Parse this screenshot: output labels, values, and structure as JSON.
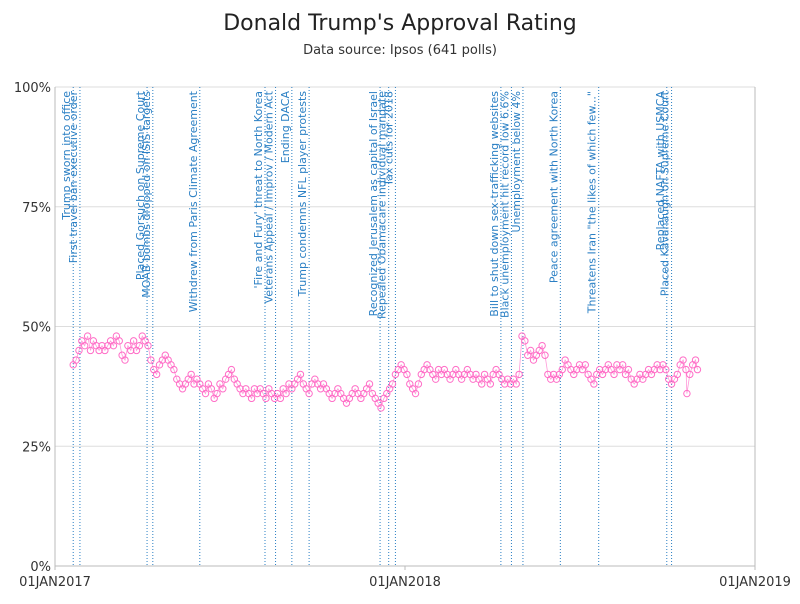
{
  "chart_data": {
    "type": "scatter",
    "title": "Donald Trump's Approval Rating",
    "subtitle": "Data source: Ipsos (641 polls)",
    "xlabel": "",
    "ylabel": "",
    "x_range": [
      "2017-01-01",
      "2019-01-01"
    ],
    "ylim": [
      0,
      100
    ],
    "y_ticks": [
      0,
      25,
      50,
      75,
      100
    ],
    "y_tick_labels": [
      "0%",
      "25%",
      "50%",
      "75%",
      "100%"
    ],
    "x_ticks": [
      "2017-01-01",
      "2018-01-01",
      "2019-01-01"
    ],
    "x_tick_labels": [
      "01JAN2017",
      "01JAN2018",
      "01JAN2019"
    ],
    "grid": true,
    "colors": {
      "points": "#ff6ec7",
      "events": "#2a7fc4",
      "grid": "#dddddd",
      "axis": "#bbbbbb"
    },
    "events": [
      {
        "date": "2017-01-20",
        "label": "Trump sworn into office"
      },
      {
        "date": "2017-01-27",
        "label": "First travel ban executive order"
      },
      {
        "date": "2017-04-07",
        "label": "Placed Gorsuch on Supreme Court"
      },
      {
        "date": "2017-04-13",
        "label": "MOAB bombs dropped on ISIS targets"
      },
      {
        "date": "2017-06-01",
        "label": "Withdrew from Paris Climate Agreement"
      },
      {
        "date": "2017-08-08",
        "label": "'Fire and Fury' threat to North Korea"
      },
      {
        "date": "2017-08-19",
        "label": "Veterans Appeal / Improv / Modern Act"
      },
      {
        "date": "2017-09-05",
        "label": "Ending DACA"
      },
      {
        "date": "2017-09-23",
        "label": "Trump condemns NFL player protests"
      },
      {
        "date": "2017-12-06",
        "label": "Recognized Jerusalem as capital of Israel"
      },
      {
        "date": "2017-12-15",
        "label": "Repealed Obamacare individual mandate"
      },
      {
        "date": "2017-12-22",
        "label": "Tax cuts for 2018"
      },
      {
        "date": "2018-04-11",
        "label": "Bill to shut down sex-trafficking websites"
      },
      {
        "date": "2018-04-22",
        "label": "Black unemployment hit record low 6.6%"
      },
      {
        "date": "2018-05-04",
        "label": "Unemployment below 4%"
      },
      {
        "date": "2018-06-12",
        "label": "Peace agreement with North Korea"
      },
      {
        "date": "2018-07-22",
        "label": "Threatens Iran \"the likes of which few...\""
      },
      {
        "date": "2018-10-01",
        "label": "Replaced NAFTA with USMCA"
      },
      {
        "date": "2018-10-06",
        "label": "Placed Kavanaugh on Supreme Court"
      }
    ],
    "series": [
      {
        "values": [
          {
            "x": "2017-01-20",
            "y": 42
          },
          {
            "x": "2017-01-23",
            "y": 43
          },
          {
            "x": "2017-01-26",
            "y": 45
          },
          {
            "x": "2017-01-29",
            "y": 47
          },
          {
            "x": "2017-02-01",
            "y": 46
          },
          {
            "x": "2017-02-04",
            "y": 48
          },
          {
            "x": "2017-02-07",
            "y": 45
          },
          {
            "x": "2017-02-10",
            "y": 47
          },
          {
            "x": "2017-02-13",
            "y": 46
          },
          {
            "x": "2017-02-16",
            "y": 45
          },
          {
            "x": "2017-02-19",
            "y": 46
          },
          {
            "x": "2017-02-22",
            "y": 45
          },
          {
            "x": "2017-02-25",
            "y": 46
          },
          {
            "x": "2017-02-28",
            "y": 47
          },
          {
            "x": "2017-03-03",
            "y": 46
          },
          {
            "x": "2017-03-06",
            "y": 48
          },
          {
            "x": "2017-03-09",
            "y": 47
          },
          {
            "x": "2017-03-12",
            "y": 44
          },
          {
            "x": "2017-03-15",
            "y": 43
          },
          {
            "x": "2017-03-18",
            "y": 46
          },
          {
            "x": "2017-03-21",
            "y": 45
          },
          {
            "x": "2017-03-24",
            "y": 47
          },
          {
            "x": "2017-03-27",
            "y": 45
          },
          {
            "x": "2017-03-30",
            "y": 46
          },
          {
            "x": "2017-04-02",
            "y": 48
          },
          {
            "x": "2017-04-05",
            "y": 47
          },
          {
            "x": "2017-04-08",
            "y": 46
          },
          {
            "x": "2017-04-11",
            "y": 43
          },
          {
            "x": "2017-04-14",
            "y": 41
          },
          {
            "x": "2017-04-17",
            "y": 40
          },
          {
            "x": "2017-04-20",
            "y": 42
          },
          {
            "x": "2017-04-23",
            "y": 43
          },
          {
            "x": "2017-04-26",
            "y": 44
          },
          {
            "x": "2017-04-29",
            "y": 43
          },
          {
            "x": "2017-05-02",
            "y": 42
          },
          {
            "x": "2017-05-05",
            "y": 41
          },
          {
            "x": "2017-05-08",
            "y": 39
          },
          {
            "x": "2017-05-11",
            "y": 38
          },
          {
            "x": "2017-05-14",
            "y": 37
          },
          {
            "x": "2017-05-17",
            "y": 38
          },
          {
            "x": "2017-05-20",
            "y": 39
          },
          {
            "x": "2017-05-23",
            "y": 40
          },
          {
            "x": "2017-05-26",
            "y": 38
          },
          {
            "x": "2017-05-29",
            "y": 39
          },
          {
            "x": "2017-06-01",
            "y": 38
          },
          {
            "x": "2017-06-04",
            "y": 37
          },
          {
            "x": "2017-06-07",
            "y": 36
          },
          {
            "x": "2017-06-10",
            "y": 38
          },
          {
            "x": "2017-06-13",
            "y": 37
          },
          {
            "x": "2017-06-16",
            "y": 35
          },
          {
            "x": "2017-06-19",
            "y": 36
          },
          {
            "x": "2017-06-22",
            "y": 38
          },
          {
            "x": "2017-06-25",
            "y": 37
          },
          {
            "x": "2017-06-28",
            "y": 39
          },
          {
            "x": "2017-07-01",
            "y": 40
          },
          {
            "x": "2017-07-04",
            "y": 41
          },
          {
            "x": "2017-07-07",
            "y": 39
          },
          {
            "x": "2017-07-10",
            "y": 38
          },
          {
            "x": "2017-07-13",
            "y": 37
          },
          {
            "x": "2017-07-16",
            "y": 36
          },
          {
            "x": "2017-07-19",
            "y": 37
          },
          {
            "x": "2017-07-22",
            "y": 36
          },
          {
            "x": "2017-07-25",
            "y": 35
          },
          {
            "x": "2017-07-28",
            "y": 37
          },
          {
            "x": "2017-07-31",
            "y": 36
          },
          {
            "x": "2017-08-03",
            "y": 37
          },
          {
            "x": "2017-08-06",
            "y": 36
          },
          {
            "x": "2017-08-09",
            "y": 35
          },
          {
            "x": "2017-08-12",
            "y": 37
          },
          {
            "x": "2017-08-15",
            "y": 36
          },
          {
            "x": "2017-08-18",
            "y": 35
          },
          {
            "x": "2017-08-21",
            "y": 36
          },
          {
            "x": "2017-08-24",
            "y": 35
          },
          {
            "x": "2017-08-27",
            "y": 37
          },
          {
            "x": "2017-08-30",
            "y": 36
          },
          {
            "x": "2017-09-02",
            "y": 38
          },
          {
            "x": "2017-09-05",
            "y": 37
          },
          {
            "x": "2017-09-08",
            "y": 38
          },
          {
            "x": "2017-09-11",
            "y": 39
          },
          {
            "x": "2017-09-14",
            "y": 40
          },
          {
            "x": "2017-09-17",
            "y": 38
          },
          {
            "x": "2017-09-20",
            "y": 37
          },
          {
            "x": "2017-09-23",
            "y": 36
          },
          {
            "x": "2017-09-26",
            "y": 38
          },
          {
            "x": "2017-09-29",
            "y": 39
          },
          {
            "x": "2017-10-02",
            "y": 38
          },
          {
            "x": "2017-10-05",
            "y": 37
          },
          {
            "x": "2017-10-08",
            "y": 38
          },
          {
            "x": "2017-10-11",
            "y": 37
          },
          {
            "x": "2017-10-14",
            "y": 36
          },
          {
            "x": "2017-10-17",
            "y": 35
          },
          {
            "x": "2017-10-20",
            "y": 36
          },
          {
            "x": "2017-10-23",
            "y": 37
          },
          {
            "x": "2017-10-26",
            "y": 36
          },
          {
            "x": "2017-10-29",
            "y": 35
          },
          {
            "x": "2017-11-01",
            "y": 34
          },
          {
            "x": "2017-11-04",
            "y": 35
          },
          {
            "x": "2017-11-07",
            "y": 36
          },
          {
            "x": "2017-11-10",
            "y": 37
          },
          {
            "x": "2017-11-13",
            "y": 36
          },
          {
            "x": "2017-11-16",
            "y": 35
          },
          {
            "x": "2017-11-19",
            "y": 36
          },
          {
            "x": "2017-11-22",
            "y": 37
          },
          {
            "x": "2017-11-25",
            "y": 38
          },
          {
            "x": "2017-11-28",
            "y": 36
          },
          {
            "x": "2017-12-01",
            "y": 35
          },
          {
            "x": "2017-12-04",
            "y": 34
          },
          {
            "x": "2017-12-07",
            "y": 33
          },
          {
            "x": "2017-12-10",
            "y": 35
          },
          {
            "x": "2017-12-13",
            "y": 36
          },
          {
            "x": "2017-12-16",
            "y": 37
          },
          {
            "x": "2017-12-19",
            "y": 38
          },
          {
            "x": "2017-12-22",
            "y": 40
          },
          {
            "x": "2017-12-25",
            "y": 41
          },
          {
            "x": "2017-12-28",
            "y": 42
          },
          {
            "x": "2017-12-31",
            "y": 41
          },
          {
            "x": "2018-01-03",
            "y": 40
          },
          {
            "x": "2018-01-06",
            "y": 38
          },
          {
            "x": "2018-01-09",
            "y": 37
          },
          {
            "x": "2018-01-12",
            "y": 36
          },
          {
            "x": "2018-01-15",
            "y": 38
          },
          {
            "x": "2018-01-18",
            "y": 40
          },
          {
            "x": "2018-01-21",
            "y": 41
          },
          {
            "x": "2018-01-24",
            "y": 42
          },
          {
            "x": "2018-01-27",
            "y": 41
          },
          {
            "x": "2018-01-30",
            "y": 40
          },
          {
            "x": "2018-02-02",
            "y": 39
          },
          {
            "x": "2018-02-05",
            "y": 41
          },
          {
            "x": "2018-02-08",
            "y": 40
          },
          {
            "x": "2018-02-11",
            "y": 41
          },
          {
            "x": "2018-02-14",
            "y": 40
          },
          {
            "x": "2018-02-17",
            "y": 39
          },
          {
            "x": "2018-02-20",
            "y": 40
          },
          {
            "x": "2018-02-23",
            "y": 41
          },
          {
            "x": "2018-02-26",
            "y": 40
          },
          {
            "x": "2018-03-01",
            "y": 39
          },
          {
            "x": "2018-03-04",
            "y": 40
          },
          {
            "x": "2018-03-07",
            "y": 41
          },
          {
            "x": "2018-03-10",
            "y": 40
          },
          {
            "x": "2018-03-13",
            "y": 39
          },
          {
            "x": "2018-03-16",
            "y": 40
          },
          {
            "x": "2018-03-19",
            "y": 39
          },
          {
            "x": "2018-03-22",
            "y": 38
          },
          {
            "x": "2018-03-25",
            "y": 40
          },
          {
            "x": "2018-03-28",
            "y": 39
          },
          {
            "x": "2018-03-31",
            "y": 38
          },
          {
            "x": "2018-04-03",
            "y": 40
          },
          {
            "x": "2018-04-06",
            "y": 41
          },
          {
            "x": "2018-04-09",
            "y": 40
          },
          {
            "x": "2018-04-12",
            "y": 39
          },
          {
            "x": "2018-04-15",
            "y": 38
          },
          {
            "x": "2018-04-18",
            "y": 39
          },
          {
            "x": "2018-04-21",
            "y": 38
          },
          {
            "x": "2018-04-24",
            "y": 39
          },
          {
            "x": "2018-04-27",
            "y": 38
          },
          {
            "x": "2018-04-30",
            "y": 40
          },
          {
            "x": "2018-05-03",
            "y": 48
          },
          {
            "x": "2018-05-06",
            "y": 47
          },
          {
            "x": "2018-05-09",
            "y": 44
          },
          {
            "x": "2018-05-12",
            "y": 45
          },
          {
            "x": "2018-05-15",
            "y": 43
          },
          {
            "x": "2018-05-18",
            "y": 44
          },
          {
            "x": "2018-05-21",
            "y": 45
          },
          {
            "x": "2018-05-24",
            "y": 46
          },
          {
            "x": "2018-05-27",
            "y": 44
          },
          {
            "x": "2018-05-30",
            "y": 40
          },
          {
            "x": "2018-06-02",
            "y": 39
          },
          {
            "x": "2018-06-05",
            "y": 40
          },
          {
            "x": "2018-06-08",
            "y": 39
          },
          {
            "x": "2018-06-11",
            "y": 40
          },
          {
            "x": "2018-06-14",
            "y": 41
          },
          {
            "x": "2018-06-17",
            "y": 43
          },
          {
            "x": "2018-06-20",
            "y": 42
          },
          {
            "x": "2018-06-23",
            "y": 41
          },
          {
            "x": "2018-06-26",
            "y": 40
          },
          {
            "x": "2018-06-29",
            "y": 41
          },
          {
            "x": "2018-07-02",
            "y": 42
          },
          {
            "x": "2018-07-05",
            "y": 41
          },
          {
            "x": "2018-07-08",
            "y": 42
          },
          {
            "x": "2018-07-11",
            "y": 40
          },
          {
            "x": "2018-07-14",
            "y": 39
          },
          {
            "x": "2018-07-17",
            "y": 38
          },
          {
            "x": "2018-07-20",
            "y": 40
          },
          {
            "x": "2018-07-23",
            "y": 41
          },
          {
            "x": "2018-07-26",
            "y": 40
          },
          {
            "x": "2018-07-29",
            "y": 41
          },
          {
            "x": "2018-08-01",
            "y": 42
          },
          {
            "x": "2018-08-04",
            "y": 41
          },
          {
            "x": "2018-08-07",
            "y": 40
          },
          {
            "x": "2018-08-10",
            "y": 42
          },
          {
            "x": "2018-08-13",
            "y": 41
          },
          {
            "x": "2018-08-16",
            "y": 42
          },
          {
            "x": "2018-08-19",
            "y": 40
          },
          {
            "x": "2018-08-22",
            "y": 41
          },
          {
            "x": "2018-08-25",
            "y": 39
          },
          {
            "x": "2018-08-28",
            "y": 38
          },
          {
            "x": "2018-08-31",
            "y": 39
          },
          {
            "x": "2018-09-03",
            "y": 40
          },
          {
            "x": "2018-09-06",
            "y": 39
          },
          {
            "x": "2018-09-09",
            "y": 40
          },
          {
            "x": "2018-09-12",
            "y": 41
          },
          {
            "x": "2018-09-15",
            "y": 40
          },
          {
            "x": "2018-09-18",
            "y": 41
          },
          {
            "x": "2018-09-21",
            "y": 42
          },
          {
            "x": "2018-09-24",
            "y": 41
          },
          {
            "x": "2018-09-27",
            "y": 42
          },
          {
            "x": "2018-09-30",
            "y": 41
          },
          {
            "x": "2018-10-03",
            "y": 39
          },
          {
            "x": "2018-10-06",
            "y": 38
          },
          {
            "x": "2018-10-09",
            "y": 39
          },
          {
            "x": "2018-10-12",
            "y": 40
          },
          {
            "x": "2018-10-15",
            "y": 42
          },
          {
            "x": "2018-10-18",
            "y": 43
          },
          {
            "x": "2018-10-21",
            "y": 41
          },
          {
            "x": "2018-10-22",
            "y": 36
          },
          {
            "x": "2018-10-25",
            "y": 40
          },
          {
            "x": "2018-10-28",
            "y": 42
          },
          {
            "x": "2018-10-31",
            "y": 43
          },
          {
            "x": "2018-11-02",
            "y": 41
          }
        ]
      }
    ]
  }
}
